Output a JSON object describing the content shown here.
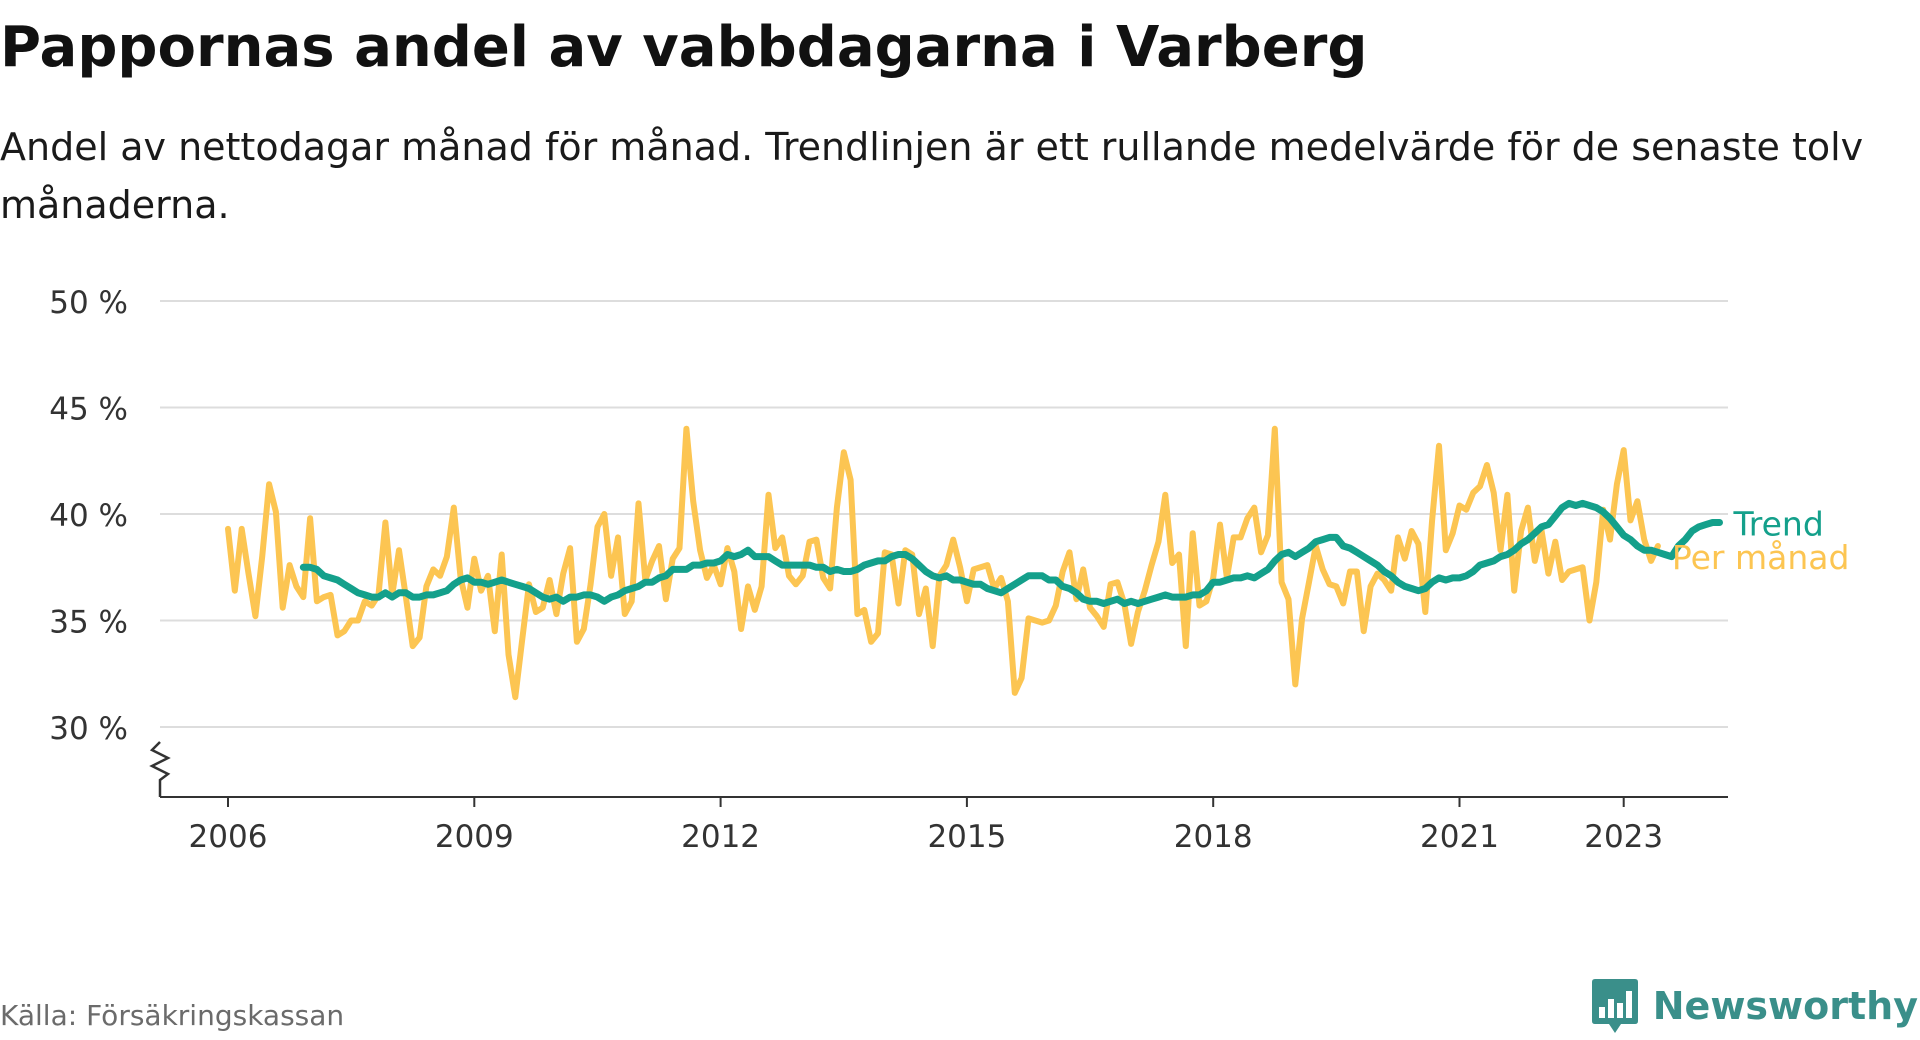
{
  "header": {
    "title": "Pappornas andel av vabbdagarna i Varberg",
    "subtitle": "Andel av nettodagar månad för månad. Trendlinjen är ett rullande medelvärde för de senaste tolv månaderna."
  },
  "footer": {
    "source": "Källa: Försäkringskassan",
    "brand": "Newsworthy"
  },
  "colors": {
    "monthly": "#fcc552",
    "trend": "#14a08b",
    "grid": "#dddddd",
    "axis": "#333333",
    "brand": "#3a8f8a"
  },
  "chart_data": {
    "type": "line",
    "title": "Pappornas andel av vabbdagarna i Varberg",
    "subtitle": "Andel av nettodagar månad för månad. Trendlinjen är ett rullande medelvärde för de senaste tolv månaderna.",
    "xlabel": "",
    "ylabel": "",
    "x_start": "2006-01",
    "x_end": "2023-05",
    "x_ticks": [
      "2006",
      "2009",
      "2012",
      "2015",
      "2018",
      "2021",
      "2023"
    ],
    "y_ticks": [
      30,
      35,
      40,
      45,
      50
    ],
    "y_tick_labels": [
      "30 %",
      "35 %",
      "40 %",
      "45 %",
      "50 %"
    ],
    "ylim": [
      26.6,
      50
    ],
    "y_axis_break": true,
    "grid": true,
    "legend": "line-end labels, right",
    "series": [
      {
        "name": "Per månad",
        "color": "#fcc552",
        "start": "2006-01",
        "values": [
          39.3,
          36.4,
          39.3,
          37.2,
          35.2,
          38.0,
          41.4,
          40.1,
          35.6,
          37.6,
          36.6,
          36.1,
          39.8,
          35.9,
          36.1,
          36.2,
          34.3,
          34.5,
          35.0,
          35.0,
          35.9,
          35.7,
          36.2,
          39.6,
          36.2,
          38.3,
          36.1,
          33.8,
          34.2,
          36.6,
          37.4,
          37.1,
          38.0,
          40.3,
          37.0,
          35.6,
          37.9,
          36.4,
          37.1,
          34.5,
          38.1,
          33.4,
          31.4,
          34.1,
          36.7,
          35.4,
          35.6,
          36.9,
          35.3,
          37.2,
          38.4,
          34.0,
          34.6,
          36.7,
          39.4,
          40.0,
          37.1,
          38.9,
          35.3,
          35.9,
          40.5,
          36.9,
          37.8,
          38.5,
          36.0,
          37.9,
          38.4,
          44.0,
          40.6,
          38.3,
          37.0,
          37.6,
          36.7,
          38.4,
          37.3,
          34.6,
          36.6,
          35.5,
          36.6,
          40.9,
          38.4,
          38.9,
          37.1,
          36.7,
          37.1,
          38.7,
          38.8,
          37.0,
          36.5,
          40.3,
          42.9,
          41.6,
          35.3,
          35.5,
          34.0,
          34.4,
          38.2,
          38.1,
          35.8,
          38.3,
          38.1,
          35.3,
          36.5,
          33.8,
          37.1,
          37.6,
          38.8,
          37.5,
          35.9,
          37.4,
          37.5,
          37.6,
          36.5,
          37.0,
          35.9,
          31.6,
          32.3,
          35.1,
          35.0,
          34.9,
          35.0,
          35.7,
          37.3,
          38.2,
          36.0,
          37.4,
          35.6,
          35.2,
          34.7,
          36.7,
          36.8,
          35.8,
          33.9,
          35.4,
          36.4,
          37.6,
          38.7,
          40.9,
          37.7,
          38.1,
          33.8,
          39.1,
          35.7,
          35.9,
          37.0,
          39.5,
          37.0,
          38.9,
          38.9,
          39.8,
          40.3,
          38.2,
          39.0,
          44.0,
          36.8,
          36.0,
          32.0,
          35.1,
          36.8,
          38.5,
          37.4,
          36.7,
          36.6,
          35.8,
          37.3,
          37.3,
          34.5,
          36.6,
          37.2,
          36.9,
          36.4,
          38.9,
          37.9,
          39.2,
          38.6,
          35.4,
          39.7,
          43.2,
          38.3,
          39.1,
          40.4,
          40.2,
          41.0,
          41.3,
          42.3,
          41.0,
          38.3,
          40.9,
          36.4,
          39.2,
          40.3,
          37.8,
          39.2,
          37.2,
          38.7,
          36.9,
          37.3,
          37.4,
          37.5,
          35.0,
          36.8,
          40.2,
          38.8,
          41.4,
          43.0,
          39.7,
          40.6,
          38.8,
          37.8,
          38.5
        ]
      },
      {
        "name": "Trend",
        "color": "#14a08b",
        "start": "2006-12",
        "values": [
          37.5,
          37.5,
          37.4,
          37.1,
          37.0,
          36.9,
          36.7,
          36.5,
          36.3,
          36.2,
          36.1,
          36.1,
          36.3,
          36.1,
          36.3,
          36.3,
          36.1,
          36.1,
          36.2,
          36.2,
          36.3,
          36.4,
          36.7,
          36.9,
          37.0,
          36.8,
          36.8,
          36.7,
          36.8,
          36.9,
          36.8,
          36.7,
          36.6,
          36.5,
          36.3,
          36.1,
          36.0,
          36.1,
          35.9,
          36.1,
          36.1,
          36.2,
          36.2,
          36.1,
          35.9,
          36.1,
          36.2,
          36.4,
          36.5,
          36.6,
          36.8,
          36.8,
          37.0,
          37.1,
          37.4,
          37.4,
          37.4,
          37.6,
          37.6,
          37.7,
          37.7,
          37.8,
          38.1,
          38.0,
          38.1,
          38.3,
          38.0,
          38.0,
          38.0,
          37.8,
          37.6,
          37.6,
          37.6,
          37.6,
          37.6,
          37.5,
          37.5,
          37.3,
          37.4,
          37.3,
          37.3,
          37.4,
          37.6,
          37.7,
          37.8,
          37.8,
          38.0,
          38.1,
          38.1,
          37.9,
          37.6,
          37.3,
          37.1,
          37.0,
          37.1,
          36.9,
          36.9,
          36.8,
          36.7,
          36.7,
          36.5,
          36.4,
          36.3,
          36.5,
          36.7,
          36.9,
          37.1,
          37.1,
          37.1,
          36.9,
          36.9,
          36.6,
          36.5,
          36.3,
          36.0,
          35.9,
          35.9,
          35.8,
          35.9,
          36.0,
          35.8,
          35.9,
          35.8,
          35.9,
          36.0,
          36.1,
          36.2,
          36.1,
          36.1,
          36.1,
          36.2,
          36.2,
          36.4,
          36.8,
          36.8,
          36.9,
          37.0,
          37.0,
          37.1,
          37.0,
          37.2,
          37.4,
          37.8,
          38.1,
          38.2,
          38.0,
          38.2,
          38.4,
          38.7,
          38.8,
          38.9,
          38.9,
          38.5,
          38.4,
          38.2,
          38.0,
          37.8,
          37.6,
          37.3,
          37.1,
          36.8,
          36.6,
          36.5,
          36.4,
          36.5,
          36.8,
          37.0,
          36.9,
          37.0,
          37.0,
          37.1,
          37.3,
          37.6,
          37.7,
          37.8,
          38.0,
          38.1,
          38.3,
          38.6,
          38.8,
          39.1,
          39.4,
          39.5,
          39.9,
          40.3,
          40.5,
          40.4,
          40.5,
          40.4,
          40.3,
          40.1,
          39.8,
          39.4,
          39.0,
          38.8,
          38.5,
          38.3,
          38.3,
          38.2,
          38.1,
          38.0,
          38.5,
          38.8,
          39.2,
          39.4,
          39.5,
          39.6,
          39.6
        ]
      }
    ]
  }
}
